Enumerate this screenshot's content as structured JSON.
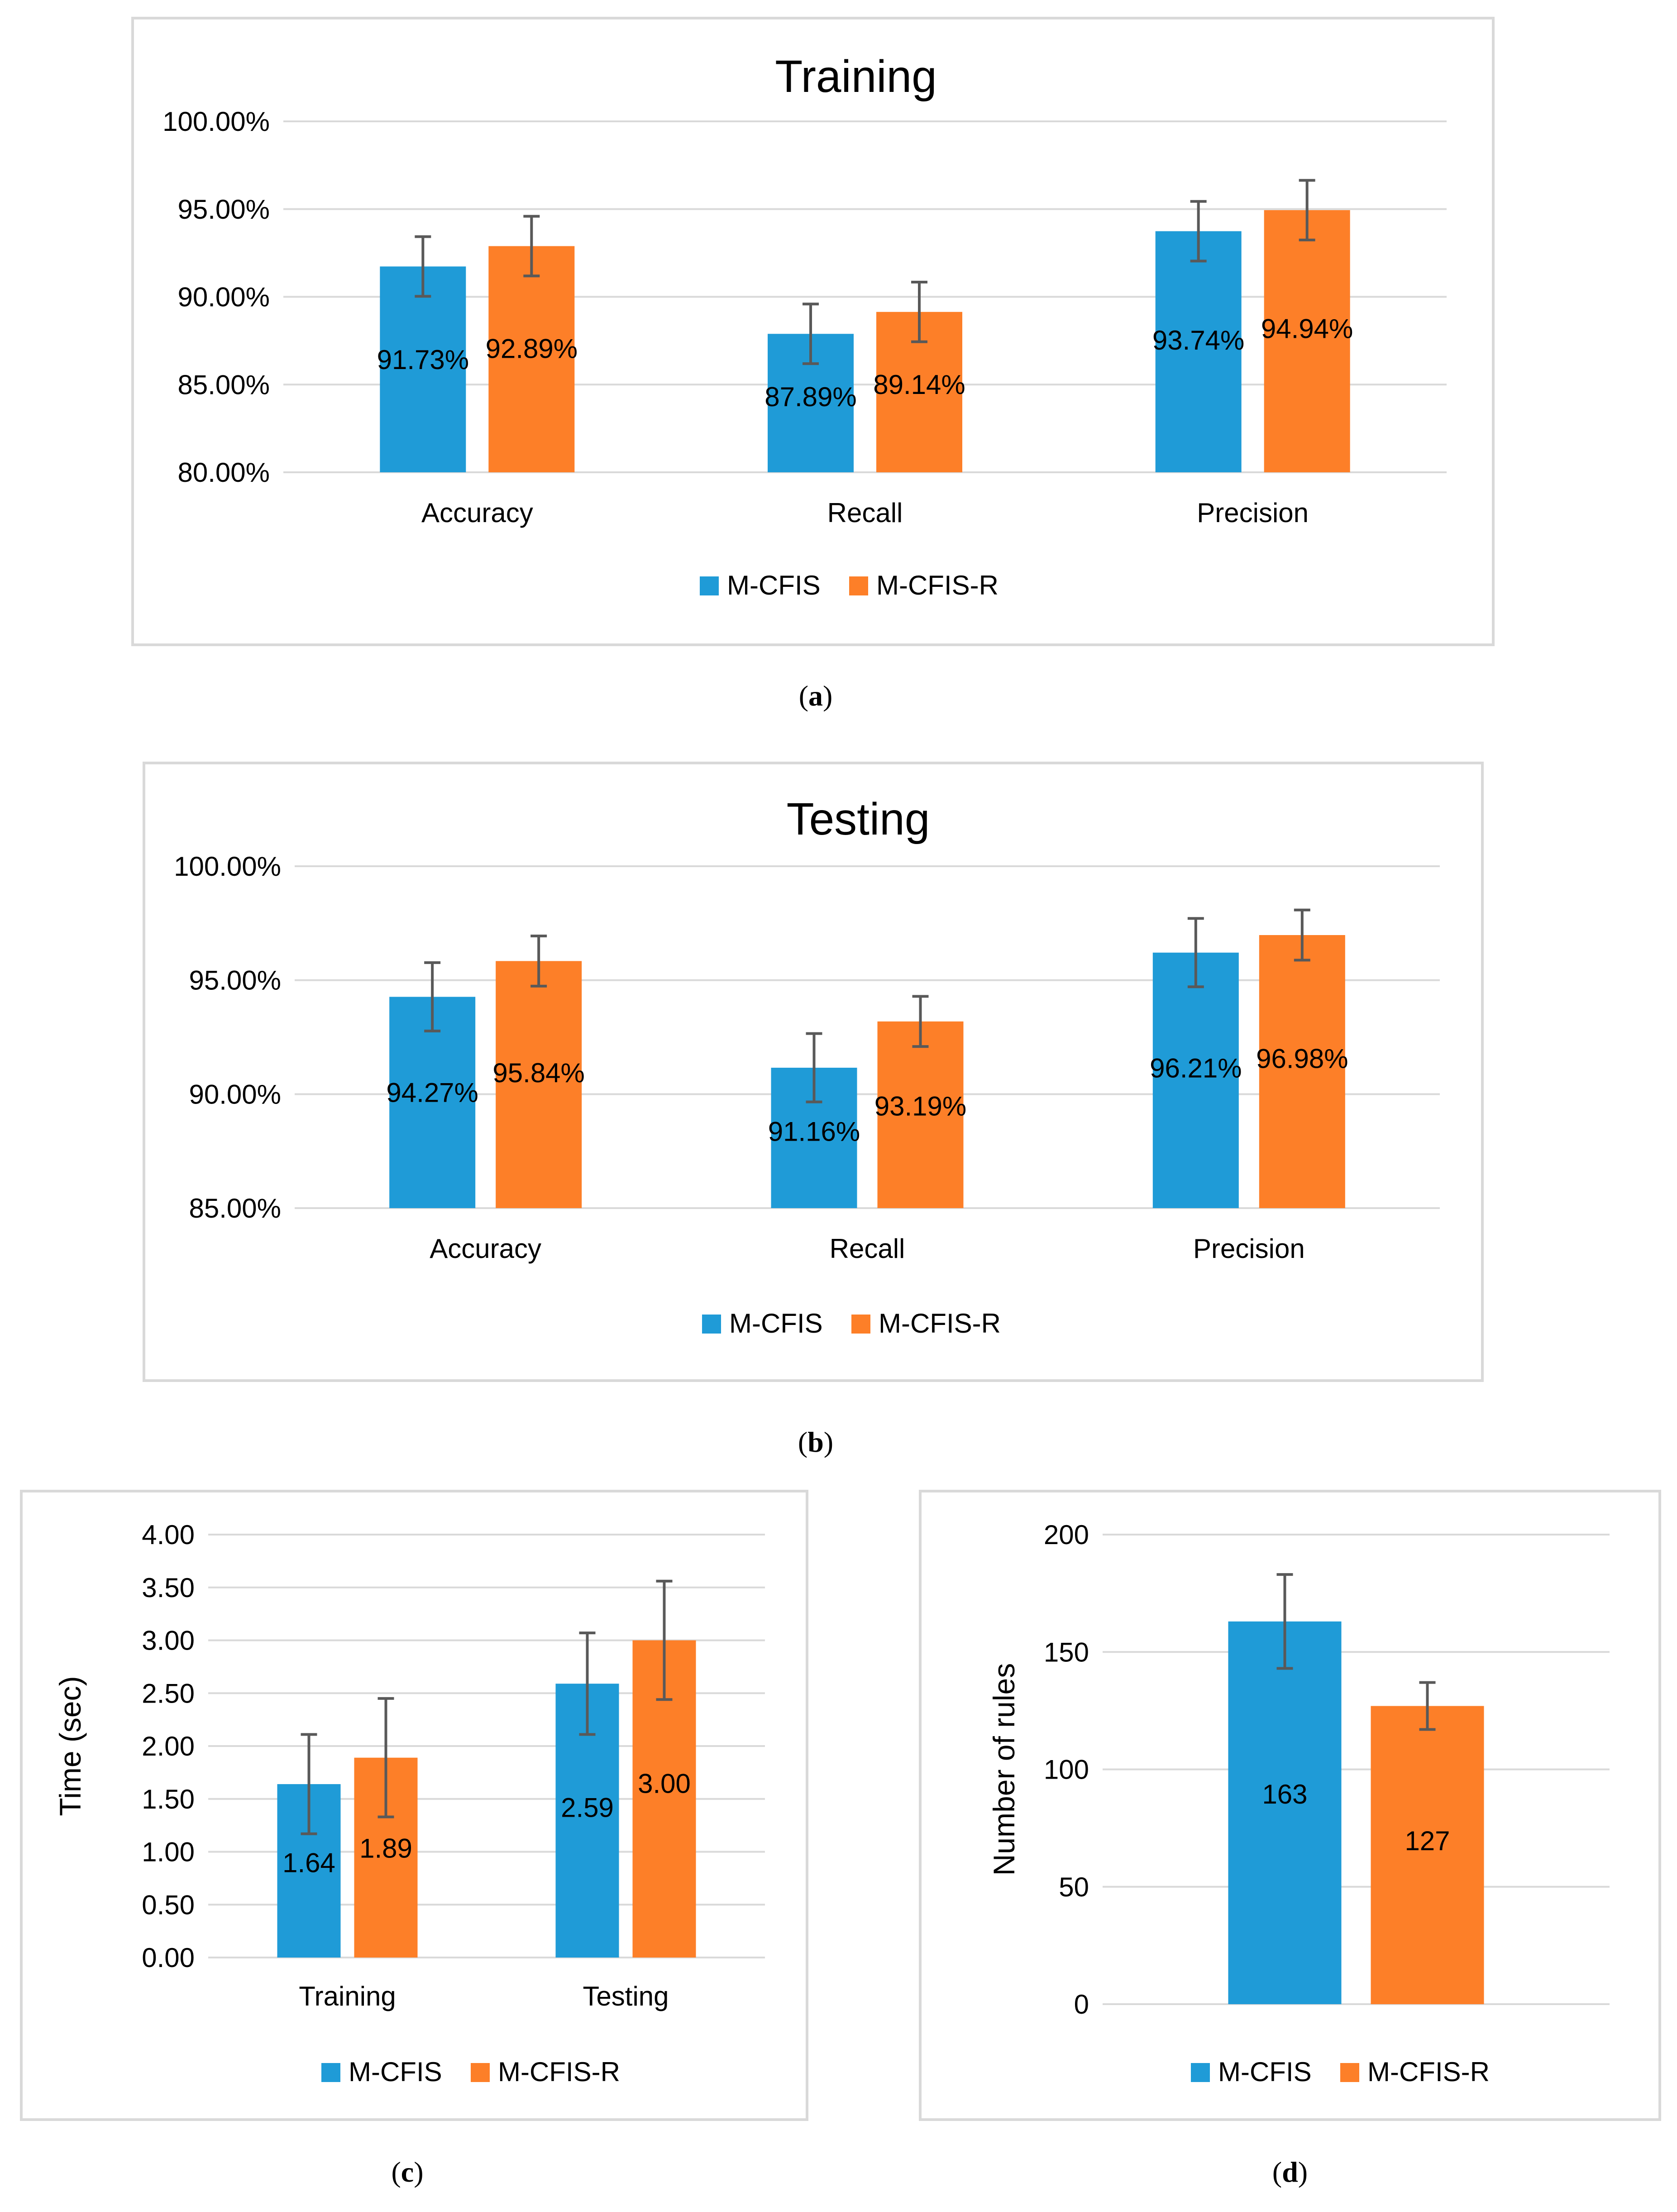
{
  "colors": {
    "series1": "#1f9bd7",
    "series2": "#fd7f28",
    "grid": "#d9d9d9",
    "error": "#595959",
    "text": "#000000"
  },
  "legend": [
    "M-CFIS",
    "M-CFIS-R"
  ],
  "chart_data": [
    {
      "id": "a",
      "type": "bar",
      "title": "Training",
      "caption": "a",
      "categories": [
        "Accuracy",
        "Recall",
        "Precision"
      ],
      "series": [
        {
          "name": "M-CFIS",
          "values": [
            91.73,
            87.89,
            93.74
          ],
          "errors": [
            1.7,
            1.7,
            1.7
          ]
        },
        {
          "name": "M-CFIS-R",
          "values": [
            92.89,
            89.14,
            94.94
          ],
          "errors": [
            1.7,
            1.7,
            1.7
          ]
        }
      ],
      "data_labels": [
        [
          "91.73%",
          "87.89%",
          "93.74%"
        ],
        [
          "92.89%",
          "89.14%",
          "94.94%"
        ]
      ],
      "yticks": [
        "80.00%",
        "85.00%",
        "90.00%",
        "95.00%",
        "100.00%"
      ],
      "ylim": [
        80,
        100
      ],
      "ylabel": "",
      "xlabel": ""
    },
    {
      "id": "b",
      "type": "bar",
      "title": "Testing",
      "caption": "b",
      "categories": [
        "Accuracy",
        "Recall",
        "Precision"
      ],
      "series": [
        {
          "name": "M-CFIS",
          "values": [
            94.27,
            91.16,
            96.21
          ],
          "errors": [
            1.5,
            1.5,
            1.5
          ]
        },
        {
          "name": "M-CFIS-R",
          "values": [
            95.84,
            93.19,
            96.98
          ],
          "errors": [
            1.1,
            1.1,
            1.1
          ]
        }
      ],
      "data_labels": [
        [
          "94.27%",
          "91.16%",
          "96.21%"
        ],
        [
          "95.84%",
          "93.19%",
          "96.98%"
        ]
      ],
      "yticks": [
        "85.00%",
        "90.00%",
        "95.00%",
        "100.00%"
      ],
      "ylim": [
        85,
        100
      ],
      "ylabel": "",
      "xlabel": ""
    },
    {
      "id": "c",
      "type": "bar",
      "title": "",
      "caption": "c",
      "categories": [
        "Training",
        "Testing"
      ],
      "series": [
        {
          "name": "M-CFIS",
          "values": [
            1.64,
            2.59
          ],
          "errors": [
            0.47,
            0.48
          ]
        },
        {
          "name": "M-CFIS-R",
          "values": [
            1.89,
            3.0
          ],
          "errors": [
            0.56,
            0.56
          ]
        }
      ],
      "data_labels": [
        [
          "1.64",
          "2.59"
        ],
        [
          "1.89",
          "3.00"
        ]
      ],
      "yticks": [
        "0.00",
        "0.50",
        "1.00",
        "1.50",
        "2.00",
        "2.50",
        "3.00",
        "3.50",
        "4.00"
      ],
      "ylim": [
        0,
        4
      ],
      "ylabel": "Time (sec)",
      "xlabel": ""
    },
    {
      "id": "d",
      "type": "bar",
      "title": "",
      "caption": "d",
      "categories": [
        ""
      ],
      "series": [
        {
          "name": "M-CFIS",
          "values": [
            163
          ],
          "errors": [
            20
          ]
        },
        {
          "name": "M-CFIS-R",
          "values": [
            127
          ],
          "errors": [
            10
          ]
        }
      ],
      "data_labels": [
        [
          "163"
        ],
        [
          "127"
        ]
      ],
      "yticks": [
        "0",
        "50",
        "100",
        "150",
        "200"
      ],
      "ylim": [
        0,
        200
      ],
      "ylabel": "Number of rules",
      "xlabel": ""
    }
  ]
}
